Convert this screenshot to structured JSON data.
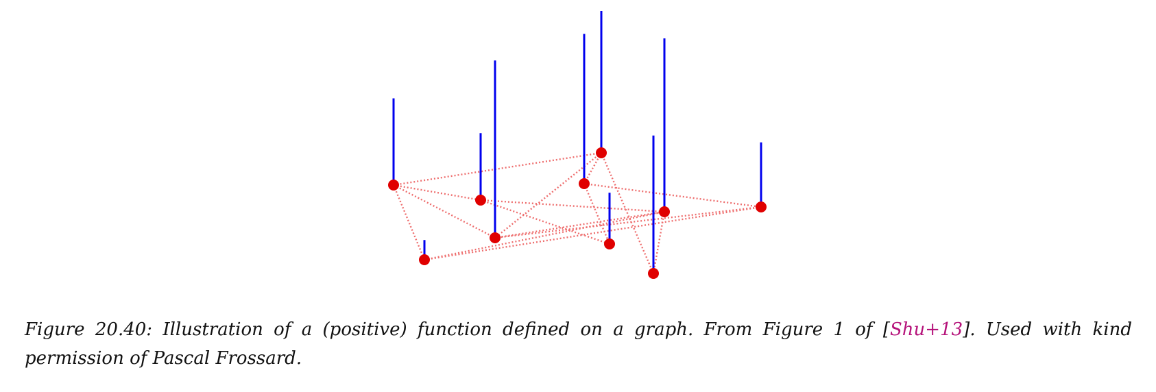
{
  "figure": {
    "colors": {
      "stem": "#0000ee",
      "node": "#e00000",
      "edge": "#ee6e6e",
      "citation": "#b5127a"
    },
    "nodes": [
      {
        "id": "n1",
        "value": 1.1
      },
      {
        "id": "n2",
        "value": 1.8
      },
      {
        "id": "n3",
        "value": 0.85
      },
      {
        "id": "n4",
        "value": 1.9
      },
      {
        "id": "n5",
        "value": 0.82
      },
      {
        "id": "n6",
        "value": 0.25
      },
      {
        "id": "n7",
        "value": 2.25
      },
      {
        "id": "n8",
        "value": 0.65
      },
      {
        "id": "n9",
        "value": 1.75
      },
      {
        "id": "n10",
        "value": 2.2
      }
    ],
    "edges": [
      [
        "n1",
        "n6"
      ],
      [
        "n6",
        "n10"
      ],
      [
        "n10",
        "n9"
      ],
      [
        "n9",
        "n2"
      ],
      [
        "n2",
        "n1"
      ],
      [
        "n1",
        "n3"
      ],
      [
        "n1",
        "n7"
      ],
      [
        "n3",
        "n8"
      ],
      [
        "n3",
        "n10"
      ],
      [
        "n2",
        "n4"
      ],
      [
        "n4",
        "n5"
      ],
      [
        "n4",
        "n8"
      ],
      [
        "n5",
        "n6"
      ],
      [
        "n5",
        "n7"
      ],
      [
        "n7",
        "n10"
      ],
      [
        "n2",
        "n7"
      ]
    ]
  },
  "caption": {
    "prefix": "Figure 20.40: Illustration of a (positive) function defined on a graph. From Figure 1 of [",
    "citation": "Shu+13",
    "suffix": "]. Used with kind permission of Pascal Frossard."
  }
}
